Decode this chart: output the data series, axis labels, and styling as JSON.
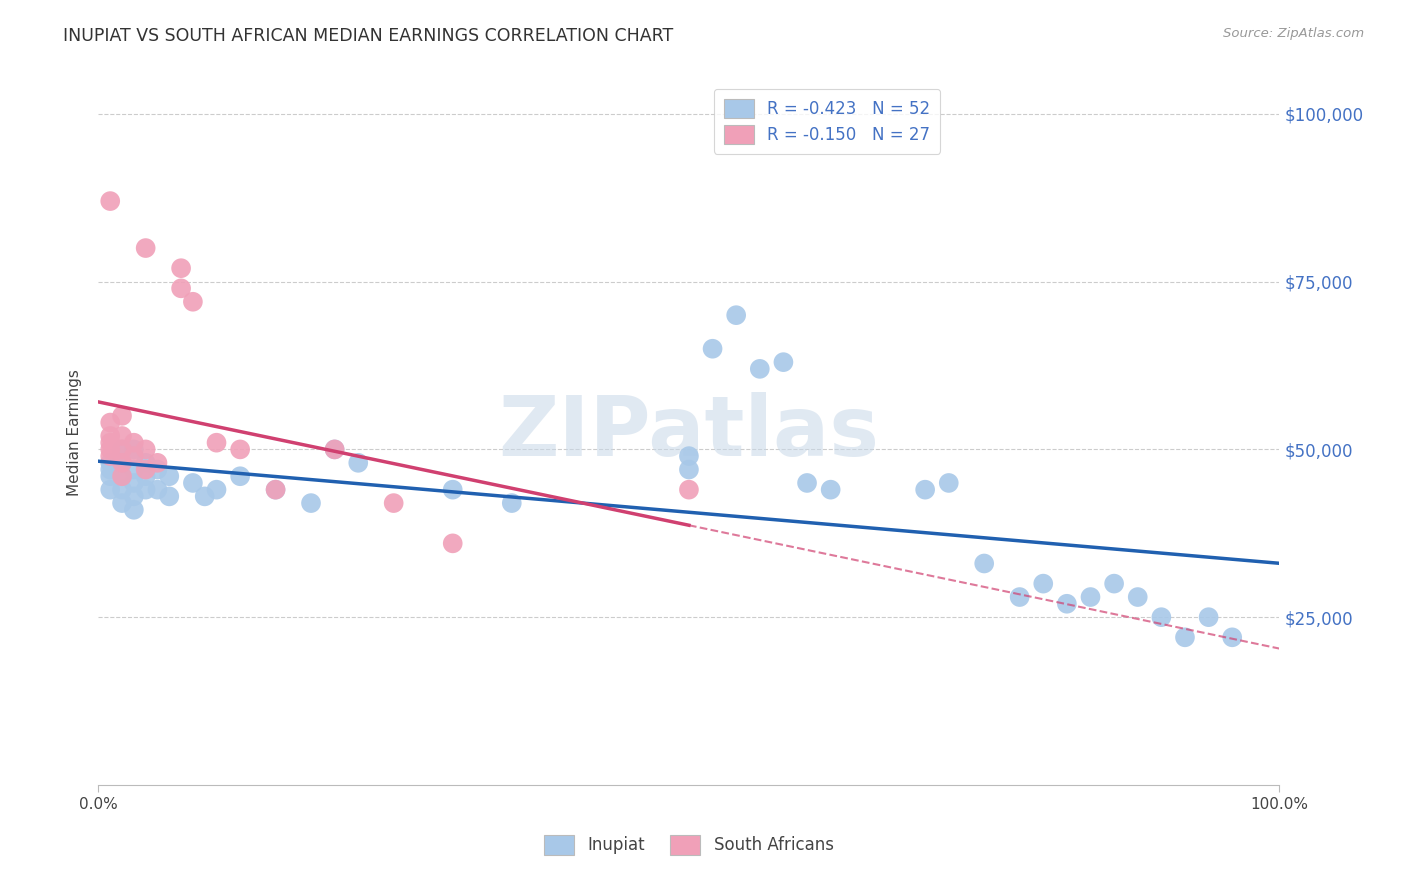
{
  "title": "INUPIAT VS SOUTH AFRICAN MEDIAN EARNINGS CORRELATION CHART",
  "source": "Source: ZipAtlas.com",
  "ylabel": "Median Earnings",
  "inupiat_color": "#a8c8e8",
  "south_african_color": "#f0a0b8",
  "inupiat_line_color": "#2060b0",
  "south_african_line_color": "#d04070",
  "watermark_text": "ZIPatlas",
  "inupiat_points": [
    [
      0.01,
      48000
    ],
    [
      0.01,
      46000
    ],
    [
      0.01,
      47000
    ],
    [
      0.01,
      44000
    ],
    [
      0.02,
      50000
    ],
    [
      0.02,
      48000
    ],
    [
      0.02,
      46000
    ],
    [
      0.02,
      44000
    ],
    [
      0.02,
      42000
    ],
    [
      0.03,
      50000
    ],
    [
      0.03,
      47000
    ],
    [
      0.03,
      45000
    ],
    [
      0.03,
      43000
    ],
    [
      0.03,
      41000
    ],
    [
      0.04,
      48000
    ],
    [
      0.04,
      46000
    ],
    [
      0.04,
      44000
    ],
    [
      0.05,
      47000
    ],
    [
      0.05,
      44000
    ],
    [
      0.06,
      46000
    ],
    [
      0.06,
      43000
    ],
    [
      0.08,
      45000
    ],
    [
      0.09,
      43000
    ],
    [
      0.1,
      44000
    ],
    [
      0.12,
      46000
    ],
    [
      0.15,
      44000
    ],
    [
      0.18,
      42000
    ],
    [
      0.2,
      50000
    ],
    [
      0.22,
      48000
    ],
    [
      0.3,
      44000
    ],
    [
      0.35,
      42000
    ],
    [
      0.5,
      49000
    ],
    [
      0.5,
      47000
    ],
    [
      0.52,
      65000
    ],
    [
      0.54,
      70000
    ],
    [
      0.56,
      62000
    ],
    [
      0.58,
      63000
    ],
    [
      0.6,
      45000
    ],
    [
      0.62,
      44000
    ],
    [
      0.7,
      44000
    ],
    [
      0.72,
      45000
    ],
    [
      0.75,
      33000
    ],
    [
      0.78,
      28000
    ],
    [
      0.8,
      30000
    ],
    [
      0.82,
      27000
    ],
    [
      0.84,
      28000
    ],
    [
      0.86,
      30000
    ],
    [
      0.88,
      28000
    ],
    [
      0.9,
      25000
    ],
    [
      0.92,
      22000
    ],
    [
      0.94,
      25000
    ],
    [
      0.96,
      22000
    ]
  ],
  "south_african_points": [
    [
      0.01,
      54000
    ],
    [
      0.01,
      52000
    ],
    [
      0.01,
      51000
    ],
    [
      0.01,
      50000
    ],
    [
      0.01,
      49000
    ],
    [
      0.02,
      55000
    ],
    [
      0.02,
      52000
    ],
    [
      0.02,
      50000
    ],
    [
      0.02,
      48000
    ],
    [
      0.02,
      46000
    ],
    [
      0.03,
      51000
    ],
    [
      0.03,
      49000
    ],
    [
      0.04,
      80000
    ],
    [
      0.04,
      50000
    ],
    [
      0.04,
      47000
    ],
    [
      0.01,
      87000
    ],
    [
      0.05,
      48000
    ],
    [
      0.07,
      77000
    ],
    [
      0.07,
      74000
    ],
    [
      0.08,
      72000
    ],
    [
      0.1,
      51000
    ],
    [
      0.12,
      50000
    ],
    [
      0.15,
      44000
    ],
    [
      0.2,
      50000
    ],
    [
      0.25,
      42000
    ],
    [
      0.3,
      36000
    ],
    [
      0.5,
      44000
    ]
  ]
}
